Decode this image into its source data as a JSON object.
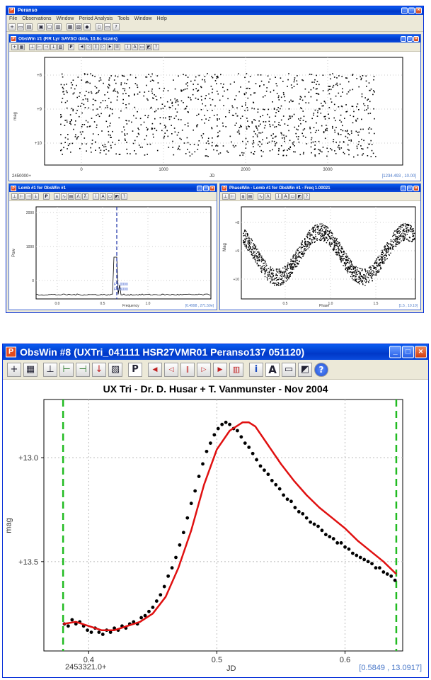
{
  "top_app": {
    "title": "Peranso",
    "menu": [
      "File",
      "Observations",
      "Window",
      "Period Analysis",
      "Tools",
      "Window",
      "Help"
    ],
    "obswin": {
      "title": "ObsWin #1 (RR Lyr SAVSO data, 10.8c scans)",
      "ylabel": "mag",
      "yticks": [
        "+8",
        "+9",
        "+10"
      ],
      "xticks": [
        "0",
        "1000",
        "2000",
        "3000"
      ],
      "x_origin": "2450000+",
      "xlabel": "JD",
      "coord": "[1234.493 , 10.00]"
    },
    "period_window": {
      "title": "Lomb #1 for ObsWin #1",
      "yticks": [
        "2000",
        "1000",
        "0"
      ],
      "ylabel": "Pow",
      "xticks": [
        "0.0",
        "0.5",
        "1.0"
      ],
      "xlabel": "Frequency",
      "annot": [
        "F 1.0000",
        "F 0.5000"
      ],
      "coord": "[0.4998 , 271.50e]"
    },
    "phase_window": {
      "title": "PhaseWin - Lomb #1 for ObsWin #1 - Freq 1.00021",
      "ylabel": "Mag",
      "yticks": [
        "+8",
        "+9",
        "+10"
      ],
      "xticks": [
        "0.5",
        "1.0",
        "1.5"
      ],
      "xlabel": "Phase",
      "coord": "[1.5 , 10.10]"
    }
  },
  "bottom_obswin": {
    "title": "ObsWin #8 (UXTri_041111 HSR27VMR01 Peranso137 051120)",
    "toolbar_icons": [
      "plus-icon",
      "grid-icon",
      "baseline-icon",
      "mark-icon",
      "mark-range-icon",
      "down-arrow-icon",
      "picture-icon",
      "period-icon",
      "first-icon",
      "prev-icon",
      "pause-icon",
      "next-icon",
      "last-icon",
      "columns-icon",
      "info-icon",
      "text-icon",
      "frame-icon",
      "help-icon"
    ],
    "period_button": "P",
    "text_button": "A",
    "help_button": "?"
  },
  "chart_data": {
    "type": "scatter",
    "title": "UX Tri - Dr. D. Husar + T. Vanmunster - Nov 2004",
    "xlabel": "JD",
    "ylabel": "mag",
    "x_origin_label": "2453321.0+",
    "xlim": [
      0.365,
      0.645
    ],
    "ylim": [
      13.93,
      12.72
    ],
    "xticks": [
      "0.4",
      "0.5",
      "0.6"
    ],
    "xtick_values": [
      0.4,
      0.5,
      0.6
    ],
    "yticks": [
      "+13.0",
      "+13.5"
    ],
    "ytick_values": [
      13.0,
      13.5
    ],
    "y_inverted": true,
    "grid": true,
    "markers": [
      0.38,
      0.64
    ],
    "coord_readout": "[0.5849 , 13.0917]",
    "series": [
      {
        "kind": "points",
        "color": "#000000",
        "x": [
          0.381,
          0.384,
          0.387,
          0.39,
          0.393,
          0.396,
          0.399,
          0.402,
          0.405,
          0.408,
          0.411,
          0.414,
          0.417,
          0.42,
          0.423,
          0.426,
          0.429,
          0.432,
          0.435,
          0.438,
          0.441,
          0.444,
          0.447,
          0.45,
          0.453,
          0.456,
          0.459,
          0.462,
          0.465,
          0.468,
          0.471,
          0.474,
          0.477,
          0.48,
          0.483,
          0.486,
          0.489,
          0.492,
          0.495,
          0.498,
          0.501,
          0.504,
          0.507,
          0.51,
          0.513,
          0.516,
          0.519,
          0.522,
          0.525,
          0.528,
          0.531,
          0.534,
          0.537,
          0.54,
          0.543,
          0.546,
          0.549,
          0.552,
          0.555,
          0.558,
          0.561,
          0.564,
          0.567,
          0.57,
          0.573,
          0.576,
          0.579,
          0.582,
          0.585,
          0.588,
          0.591,
          0.594,
          0.597,
          0.6,
          0.603,
          0.606,
          0.609,
          0.612,
          0.615,
          0.618,
          0.621,
          0.624,
          0.627,
          0.63,
          0.633,
          0.636,
          0.639
        ],
        "y": [
          13.8,
          13.81,
          13.78,
          13.8,
          13.79,
          13.81,
          13.83,
          13.84,
          13.82,
          13.84,
          13.85,
          13.83,
          13.84,
          13.82,
          13.83,
          13.81,
          13.82,
          13.8,
          13.79,
          13.8,
          13.77,
          13.76,
          13.74,
          13.72,
          13.69,
          13.66,
          13.62,
          13.57,
          13.53,
          13.48,
          13.42,
          13.36,
          13.29,
          13.22,
          13.16,
          13.09,
          13.03,
          12.97,
          12.93,
          12.89,
          12.86,
          12.84,
          12.83,
          12.84,
          12.86,
          12.87,
          12.9,
          12.93,
          12.95,
          12.98,
          13.01,
          13.04,
          13.06,
          13.08,
          13.11,
          13.13,
          13.15,
          13.18,
          13.2,
          13.21,
          13.24,
          13.26,
          13.27,
          13.29,
          13.31,
          13.32,
          13.33,
          13.35,
          13.37,
          13.38,
          13.39,
          13.41,
          13.41,
          13.43,
          13.44,
          13.46,
          13.47,
          13.48,
          13.49,
          13.5,
          13.51,
          13.53,
          13.53,
          13.55,
          13.56,
          13.57,
          13.59
        ]
      },
      {
        "kind": "fit",
        "color": "#e01010",
        "x": [
          0.38,
          0.39,
          0.4,
          0.41,
          0.42,
          0.43,
          0.44,
          0.45,
          0.46,
          0.47,
          0.48,
          0.49,
          0.5,
          0.51,
          0.52,
          0.525,
          0.53,
          0.54,
          0.55,
          0.56,
          0.57,
          0.58,
          0.59,
          0.6,
          0.61,
          0.62,
          0.63,
          0.64
        ],
        "y": [
          13.8,
          13.79,
          13.81,
          13.83,
          13.83,
          13.81,
          13.79,
          13.75,
          13.67,
          13.53,
          13.35,
          13.13,
          12.96,
          12.87,
          12.83,
          12.83,
          12.85,
          12.94,
          13.03,
          13.11,
          13.18,
          13.24,
          13.29,
          13.34,
          13.4,
          13.45,
          13.5,
          13.56
        ]
      }
    ]
  }
}
